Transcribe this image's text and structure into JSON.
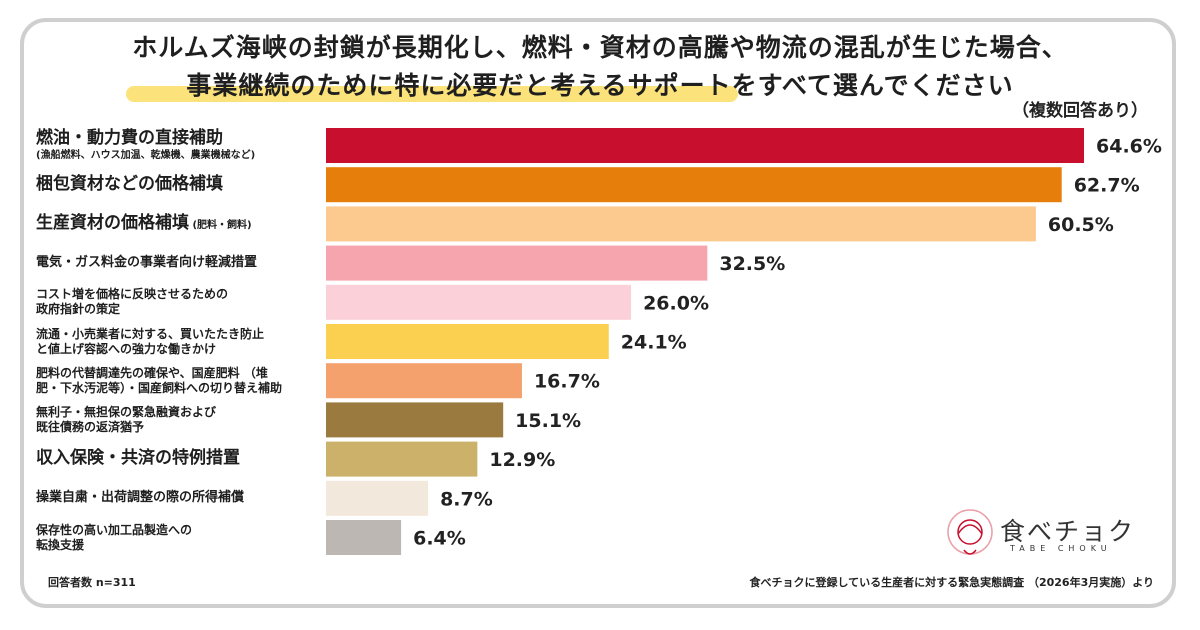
{
  "header": {
    "title_line1": "ホルムズ海峡の封鎖が長期化し、燃料・資材の高騰や物流の混乱が生じた場合、",
    "title_line2": "事業継続のために特に必要だと考えるサポートをすべて選んでください",
    "subtitle": "（複数回答あり）"
  },
  "chart_data": {
    "type": "bar",
    "orientation": "horizontal",
    "categories": [
      "燃油・動力費の直接補助",
      "梱包資材などの価格補填",
      "生産資材の価格補填",
      "電気・ガス料金の事業者向け軽減措置",
      "コスト増を価格に反映させるための政府指針の策定",
      "流通・小売業者に対する、買いたたき防止と値上げ容認への強力な働きかけ",
      "肥料の代替調達先の確保や、国産肥料 （堆肥・下水汚泥等）・国産飼料への切り替え補助",
      "無利子・無担保の緊急融資および既往債務の返済猶予",
      "収入保険・共済の特例措置",
      "操業自粛・出荷調整の際の所得補償",
      "保存性の高い加工品製造への転換支援"
    ],
    "display_lines": [
      [
        "燃油・動力費の直接補助"
      ],
      [
        "梱包資材などの価格補填"
      ],
      [
        "生産資材の価格補填"
      ],
      [
        "電気・ガス料金の事業者向け軽減措置"
      ],
      [
        "コスト増を価格に反映させるための",
        "政府指針の策定"
      ],
      [
        "流通・小売業者に対する、買いたたき防止",
        "と値上げ容認への強力な働きかけ"
      ],
      [
        "肥料の代替調達先の確保や、国産肥料 （堆",
        "肥・下水汚泥等）・国産飼料への切り替え補助"
      ],
      [
        "無利子・無担保の緊急融資および",
        "既往債務の返済猶予"
      ],
      [
        "収入保険・共済の特例措置"
      ],
      [
        "操業自粛・出荷調整の際の所得補償"
      ],
      [
        "保存性の高い加工品製造への",
        "転換支援"
      ]
    ],
    "notes": [
      "(漁船燃料、ハウス加温、乾燥機、農業機械など)",
      "",
      "(肥料・飼料)",
      "",
      "",
      "",
      "",
      "",
      "",
      "",
      ""
    ],
    "values": [
      64.6,
      62.7,
      60.5,
      32.5,
      26.0,
      24.1,
      16.7,
      15.1,
      12.9,
      8.7,
      6.4
    ],
    "value_labels": [
      "64.6%",
      "62.7%",
      "60.5%",
      "32.5%",
      "26.0%",
      "24.1%",
      "16.7%",
      "15.1%",
      "12.9%",
      "8.7%",
      "6.4%"
    ],
    "colors": [
      "#c8102e",
      "#e67e0c",
      "#fcc98f",
      "#f6a5ae",
      "#fbd0d8",
      "#fbd051",
      "#f4a16e",
      "#9a7a3e",
      "#cbb16a",
      "#f3e8dc",
      "#bcb7b3"
    ],
    "xlim": [
      0,
      64.6
    ]
  },
  "footer": {
    "respondents": "回答者数 n=311",
    "source": "食べチョクに登録している生産者に対する緊急実態調査 （2026年3月実施）より"
  },
  "logo": {
    "text": "食べチョク",
    "sub": "TABE CHOKU",
    "color": "#c8102e"
  }
}
